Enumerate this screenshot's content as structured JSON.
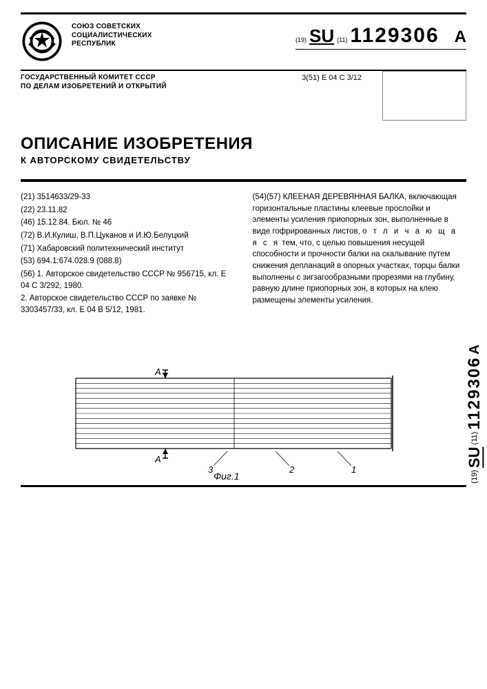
{
  "header": {
    "org_line1": "СОЮЗ СОВЕТСКИХ",
    "org_line2": "СОЦИАЛИСТИЧЕСКИХ",
    "org_line3": "РЕСПУБЛИК",
    "pub_prefix_19": "(19)",
    "pub_su": "SU",
    "pub_prefix_11": "(11)",
    "pub_number": "1129306",
    "pub_suffix": "A",
    "committee_line1": "ГОСУДАРСТВЕННЫЙ КОМИТЕТ СССР",
    "committee_line2": "ПО ДЕЛАМ ИЗОБРЕТЕНИЙ И ОТКРЫТИЙ",
    "ipc": "3(51) E 04 C 3/12",
    "title_main": "ОПИСАНИЕ ИЗОБРЕТЕНИЯ",
    "title_sub": "К АВТОРСКОМУ СВИДЕТЕЛЬСТВУ"
  },
  "biblio": {
    "f21": "(21) 3514633/29-33",
    "f22": "(22) 23.11.82",
    "f46": "(46) 15.12.84. Бюл. № 46",
    "f72": "(72) В.И.Кулиш, В.П.Цуканов и И.Ю.Белуцкий",
    "f71": "(71) Хабаровский политехнический институт",
    "f53": "(53) 694.1:674.028.9 (088.8)",
    "f56_1": "(56) 1. Авторское свидетельство СССР № 956715, кл. E 04 C 3/292, 1980.",
    "f56_2": "2. Авторское свидетельство СССР по заявке № 3303457/33, кл. E 04 B 5/12, 1981."
  },
  "abstract": {
    "code": "(54)(57)",
    "title": "КЛЕЕНАЯ ДЕРЕВЯННАЯ БАЛКА,",
    "body": "включающая горизонтальные пластины клеевые прослойки и элементы усиления приопорных зон, выполненные в виде гофрированных листов, ",
    "distinct_label": "о т л и ч а ю щ а я с я",
    "body2": " тем, что, с целью повышения несущей способности и прочности балки на скалывание путем снижения депланаций в опорных участках, торцы балки выполнены с зигзагообразными прорезями на глубину, равную длине приопорных зон, в которых на клею размещены элементы усиления."
  },
  "figure": {
    "caption": "Фиг.1",
    "labels": {
      "A_top": "A",
      "A_bot": "A",
      "n1": "1",
      "n2": "2",
      "n3": "3"
    },
    "layers": 14,
    "beam_color": "#000000",
    "background": "#ffffff"
  },
  "side": {
    "prefix_19": "(19)",
    "su": "SU",
    "prefix_11": "(11)",
    "number": "1129306",
    "suffix": "A"
  }
}
